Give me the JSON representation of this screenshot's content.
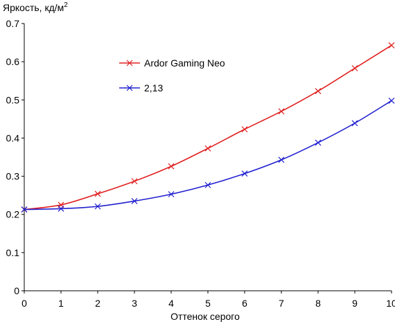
{
  "chart_data": {
    "type": "line",
    "ylabel": "Яркость, кд/м",
    "ylabel_sup": "2",
    "xlabel": "Оттенок серого",
    "xlim": [
      0,
      10
    ],
    "ylim": [
      0,
      0.7
    ],
    "x_ticks": [
      0,
      1,
      2,
      3,
      4,
      5,
      6,
      7,
      8,
      9,
      10
    ],
    "y_ticks": [
      "0",
      "0.1",
      "0.2",
      "0.3",
      "0.4",
      "0.5",
      "0.6",
      "0.7"
    ],
    "x": [
      0,
      1,
      2,
      3,
      4,
      5,
      6,
      7,
      8,
      9,
      10
    ],
    "series": [
      {
        "name": "Ardor Gaming Neo",
        "color": "#e02020",
        "marker": "x",
        "values": [
          0.213,
          0.225,
          0.254,
          0.287,
          0.326,
          0.373,
          0.423,
          0.47,
          0.523,
          0.583,
          0.643
        ]
      },
      {
        "name": "2,13",
        "color": "#2020d0",
        "marker": "x",
        "values": [
          0.213,
          0.215,
          0.221,
          0.235,
          0.253,
          0.277,
          0.307,
          0.343,
          0.388,
          0.439,
          0.498
        ]
      }
    ],
    "legend_position": "top-center",
    "grid": false
  }
}
